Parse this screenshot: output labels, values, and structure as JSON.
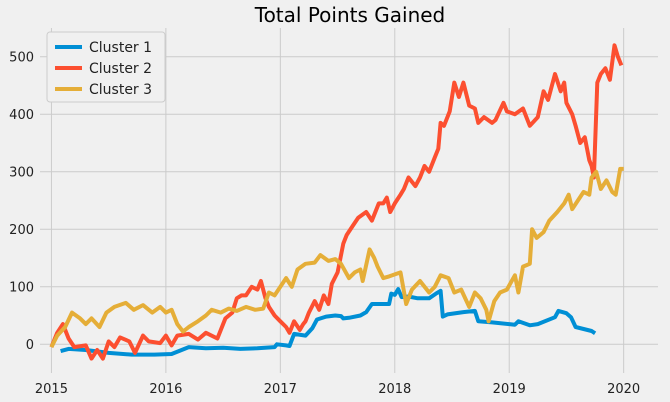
{
  "chart_data": {
    "type": "line",
    "title": "Total Points Gained",
    "xlabel": "",
    "ylabel": "",
    "xlim": [
      2014.9,
      2020.3
    ],
    "ylim": [
      -50,
      550
    ],
    "xticks": [
      2015,
      2016,
      2017,
      2018,
      2019,
      2020
    ],
    "yticks": [
      0,
      100,
      200,
      300,
      400,
      500
    ],
    "grid": true,
    "legend": "top-left",
    "series": [
      {
        "name": "Cluster 1",
        "color": "#008fd5",
        "points": [
          [
            2015.08,
            -12
          ],
          [
            2015.15,
            -8
          ],
          [
            2015.3,
            -10
          ],
          [
            2015.5,
            -15
          ],
          [
            2015.7,
            -18
          ],
          [
            2015.9,
            -18
          ],
          [
            2016.05,
            -17
          ],
          [
            2016.2,
            -5
          ],
          [
            2016.35,
            -7
          ],
          [
            2016.5,
            -6
          ],
          [
            2016.65,
            -8
          ],
          [
            2016.8,
            -7
          ],
          [
            2016.95,
            -5
          ],
          [
            2016.97,
            0
          ],
          [
            2017.05,
            -2
          ],
          [
            2017.08,
            -3
          ],
          [
            2017.12,
            18
          ],
          [
            2017.22,
            15
          ],
          [
            2017.28,
            28
          ],
          [
            2017.32,
            43
          ],
          [
            2017.4,
            48
          ],
          [
            2017.48,
            50
          ],
          [
            2017.53,
            49
          ],
          [
            2017.55,
            45
          ],
          [
            2017.6,
            46
          ],
          [
            2017.7,
            50
          ],
          [
            2017.75,
            56
          ],
          [
            2017.8,
            70
          ],
          [
            2017.95,
            70
          ],
          [
            2017.97,
            88
          ],
          [
            2018.0,
            86
          ],
          [
            2018.03,
            96
          ],
          [
            2018.06,
            82
          ],
          [
            2018.12,
            83
          ],
          [
            2018.2,
            80
          ],
          [
            2018.3,
            80
          ],
          [
            2018.36,
            88
          ],
          [
            2018.4,
            93
          ],
          [
            2018.42,
            48
          ],
          [
            2018.46,
            52
          ],
          [
            2018.6,
            56
          ],
          [
            2018.7,
            58
          ],
          [
            2018.73,
            40
          ],
          [
            2018.85,
            38
          ],
          [
            2019.0,
            35
          ],
          [
            2019.05,
            34
          ],
          [
            2019.08,
            40
          ],
          [
            2019.18,
            33
          ],
          [
            2019.25,
            35
          ],
          [
            2019.4,
            47
          ],
          [
            2019.43,
            58
          ],
          [
            2019.5,
            54
          ],
          [
            2019.54,
            47
          ],
          [
            2019.58,
            30
          ],
          [
            2019.72,
            23
          ],
          [
            2019.75,
            19
          ]
        ]
      },
      {
        "name": "Cluster 2",
        "color": "#fc4f30",
        "points": [
          [
            2015.0,
            -5
          ],
          [
            2015.05,
            20
          ],
          [
            2015.1,
            35
          ],
          [
            2015.15,
            10
          ],
          [
            2015.2,
            -5
          ],
          [
            2015.3,
            -2
          ],
          [
            2015.35,
            -25
          ],
          [
            2015.4,
            -10
          ],
          [
            2015.45,
            -25
          ],
          [
            2015.5,
            5
          ],
          [
            2015.55,
            -5
          ],
          [
            2015.6,
            12
          ],
          [
            2015.68,
            5
          ],
          [
            2015.73,
            -15
          ],
          [
            2015.8,
            15
          ],
          [
            2015.85,
            5
          ],
          [
            2015.95,
            2
          ],
          [
            2016.0,
            15
          ],
          [
            2016.05,
            -2
          ],
          [
            2016.1,
            15
          ],
          [
            2016.2,
            18
          ],
          [
            2016.28,
            8
          ],
          [
            2016.35,
            20
          ],
          [
            2016.45,
            10
          ],
          [
            2016.52,
            45
          ],
          [
            2016.58,
            55
          ],
          [
            2016.62,
            80
          ],
          [
            2016.66,
            85
          ],
          [
            2016.7,
            85
          ],
          [
            2016.75,
            100
          ],
          [
            2016.8,
            95
          ],
          [
            2016.83,
            110
          ],
          [
            2016.87,
            80
          ],
          [
            2016.9,
            65
          ],
          [
            2016.95,
            50
          ],
          [
            2017.0,
            40
          ],
          [
            2017.05,
            30
          ],
          [
            2017.08,
            20
          ],
          [
            2017.12,
            40
          ],
          [
            2017.17,
            25
          ],
          [
            2017.2,
            35
          ],
          [
            2017.22,
            40
          ],
          [
            2017.25,
            55
          ],
          [
            2017.3,
            75
          ],
          [
            2017.34,
            60
          ],
          [
            2017.38,
            85
          ],
          [
            2017.42,
            70
          ],
          [
            2017.45,
            105
          ],
          [
            2017.5,
            125
          ],
          [
            2017.55,
            175
          ],
          [
            2017.58,
            190
          ],
          [
            2017.63,
            205
          ],
          [
            2017.68,
            220
          ],
          [
            2017.75,
            230
          ],
          [
            2017.8,
            215
          ],
          [
            2017.86,
            245
          ],
          [
            2017.9,
            245
          ],
          [
            2017.93,
            255
          ],
          [
            2017.96,
            230
          ],
          [
            2018.0,
            245
          ],
          [
            2018.05,
            260
          ],
          [
            2018.08,
            270
          ],
          [
            2018.12,
            290
          ],
          [
            2018.18,
            275
          ],
          [
            2018.22,
            290
          ],
          [
            2018.26,
            310
          ],
          [
            2018.3,
            300
          ],
          [
            2018.35,
            325
          ],
          [
            2018.38,
            340
          ],
          [
            2018.4,
            385
          ],
          [
            2018.43,
            380
          ],
          [
            2018.48,
            405
          ],
          [
            2018.52,
            455
          ],
          [
            2018.56,
            430
          ],
          [
            2018.6,
            455
          ],
          [
            2018.65,
            415
          ],
          [
            2018.7,
            410
          ],
          [
            2018.73,
            385
          ],
          [
            2018.78,
            395
          ],
          [
            2018.85,
            385
          ],
          [
            2018.88,
            390
          ],
          [
            2018.95,
            420
          ],
          [
            2018.98,
            405
          ],
          [
            2019.05,
            400
          ],
          [
            2019.12,
            410
          ],
          [
            2019.18,
            380
          ],
          [
            2019.25,
            395
          ],
          [
            2019.3,
            440
          ],
          [
            2019.34,
            425
          ],
          [
            2019.4,
            470
          ],
          [
            2019.45,
            440
          ],
          [
            2019.48,
            455
          ],
          [
            2019.5,
            420
          ],
          [
            2019.55,
            400
          ],
          [
            2019.58,
            380
          ],
          [
            2019.62,
            350
          ],
          [
            2019.66,
            360
          ],
          [
            2019.7,
            320
          ],
          [
            2019.72,
            310
          ],
          [
            2019.74,
            290
          ],
          [
            2019.77,
            455
          ],
          [
            2019.8,
            470
          ],
          [
            2019.84,
            480
          ],
          [
            2019.88,
            460
          ],
          [
            2019.92,
            520
          ],
          [
            2019.95,
            500
          ],
          [
            2019.98,
            485
          ]
        ]
      },
      {
        "name": "Cluster 3",
        "color": "#e5ae38",
        "points": [
          [
            2015.0,
            -5
          ],
          [
            2015.05,
            15
          ],
          [
            2015.12,
            30
          ],
          [
            2015.18,
            55
          ],
          [
            2015.25,
            45
          ],
          [
            2015.3,
            35
          ],
          [
            2015.35,
            45
          ],
          [
            2015.42,
            30
          ],
          [
            2015.48,
            55
          ],
          [
            2015.55,
            65
          ],
          [
            2015.65,
            72
          ],
          [
            2015.72,
            60
          ],
          [
            2015.8,
            68
          ],
          [
            2015.88,
            55
          ],
          [
            2015.95,
            65
          ],
          [
            2016.0,
            55
          ],
          [
            2016.05,
            60
          ],
          [
            2016.1,
            35
          ],
          [
            2016.15,
            22
          ],
          [
            2016.2,
            30
          ],
          [
            2016.28,
            40
          ],
          [
            2016.35,
            50
          ],
          [
            2016.4,
            60
          ],
          [
            2016.48,
            55
          ],
          [
            2016.55,
            62
          ],
          [
            2016.62,
            58
          ],
          [
            2016.7,
            65
          ],
          [
            2016.78,
            60
          ],
          [
            2016.85,
            62
          ],
          [
            2016.9,
            90
          ],
          [
            2016.95,
            85
          ],
          [
            2017.0,
            100
          ],
          [
            2017.05,
            115
          ],
          [
            2017.1,
            100
          ],
          [
            2017.15,
            130
          ],
          [
            2017.22,
            140
          ],
          [
            2017.3,
            142
          ],
          [
            2017.35,
            155
          ],
          [
            2017.42,
            145
          ],
          [
            2017.48,
            148
          ],
          [
            2017.53,
            140
          ],
          [
            2017.6,
            115
          ],
          [
            2017.65,
            125
          ],
          [
            2017.7,
            130
          ],
          [
            2017.72,
            110
          ],
          [
            2017.78,
            165
          ],
          [
            2017.82,
            150
          ],
          [
            2017.85,
            135
          ],
          [
            2017.9,
            115
          ],
          [
            2017.95,
            118
          ],
          [
            2018.05,
            125
          ],
          [
            2018.1,
            70
          ],
          [
            2018.15,
            95
          ],
          [
            2018.22,
            110
          ],
          [
            2018.3,
            90
          ],
          [
            2018.35,
            100
          ],
          [
            2018.4,
            120
          ],
          [
            2018.47,
            115
          ],
          [
            2018.52,
            90
          ],
          [
            2018.58,
            95
          ],
          [
            2018.65,
            65
          ],
          [
            2018.7,
            90
          ],
          [
            2018.75,
            80
          ],
          [
            2018.8,
            60
          ],
          [
            2018.82,
            40
          ],
          [
            2018.87,
            75
          ],
          [
            2018.92,
            90
          ],
          [
            2018.98,
            95
          ],
          [
            2019.05,
            120
          ],
          [
            2019.08,
            90
          ],
          [
            2019.12,
            135
          ],
          [
            2019.18,
            140
          ],
          [
            2019.2,
            200
          ],
          [
            2019.24,
            185
          ],
          [
            2019.3,
            195
          ],
          [
            2019.35,
            215
          ],
          [
            2019.42,
            230
          ],
          [
            2019.48,
            245
          ],
          [
            2019.52,
            260
          ],
          [
            2019.55,
            235
          ],
          [
            2019.6,
            250
          ],
          [
            2019.65,
            265
          ],
          [
            2019.7,
            260
          ],
          [
            2019.72,
            290
          ],
          [
            2019.76,
            300
          ],
          [
            2019.8,
            270
          ],
          [
            2019.85,
            285
          ],
          [
            2019.9,
            265
          ],
          [
            2019.93,
            260
          ],
          [
            2019.97,
            305
          ],
          [
            2020.0,
            305
          ]
        ]
      }
    ]
  }
}
